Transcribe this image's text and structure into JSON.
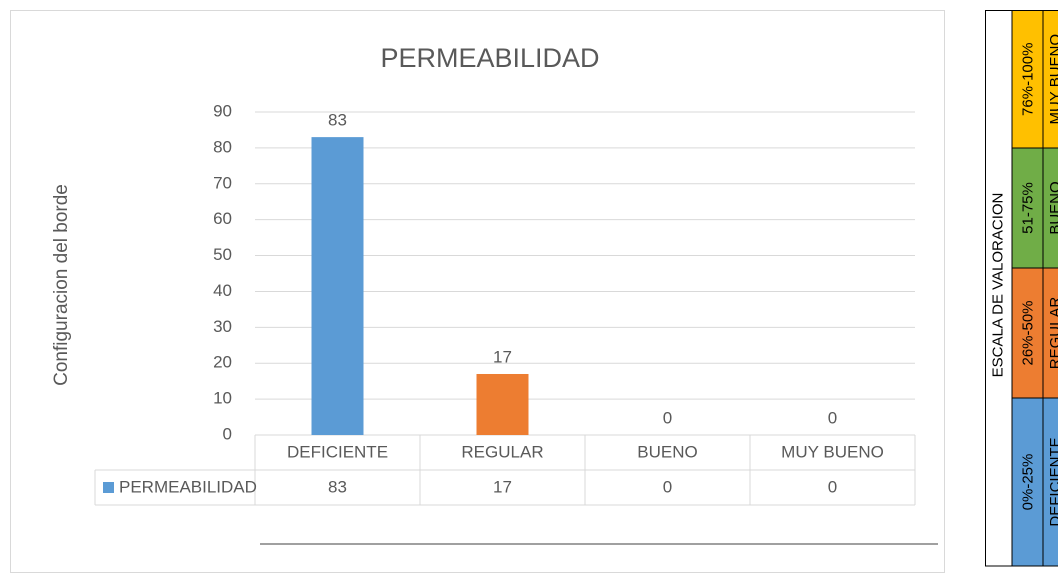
{
  "chart_data": {
    "type": "bar",
    "title": "PERMEABILIDAD",
    "y_label": "Configuracion del borde",
    "categories": [
      "DEFICIENTE",
      "REGULAR",
      "BUENO",
      "MUY BUENO"
    ],
    "series": [
      {
        "name": "PERMEABILIDAD",
        "color": "#5b9bd5",
        "colors": [
          "#5b9bd5",
          "#ed7d31",
          "#a5a5a5",
          "#ffc000"
        ],
        "values": [
          83,
          17,
          0,
          0
        ]
      }
    ],
    "ylim": [
      0,
      90
    ],
    "yticks": [
      0,
      10,
      20,
      30,
      40,
      50,
      60,
      70,
      80,
      90
    ],
    "grid": true,
    "data_table": true
  },
  "scale": {
    "title": "ESCALA DE VALORACION",
    "rows": [
      {
        "range": "0%-25%",
        "label": "DEFICIENTE",
        "color": "#5b9bd5"
      },
      {
        "range": "26%-50%",
        "label": "REGULAR",
        "color": "#ed7d31"
      },
      {
        "range": "51-75%",
        "label": "BUENO",
        "color": "#70ad47"
      },
      {
        "range": "76%-100%",
        "label": "MUY BUENO",
        "color": "#ffc000"
      }
    ]
  }
}
